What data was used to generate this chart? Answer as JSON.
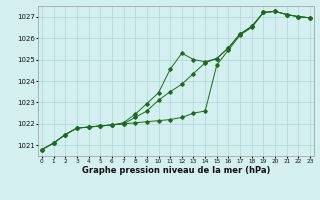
{
  "title": "Graphe pression niveau de la mer (hPa)",
  "bg_color": "#d4efef",
  "grid_color": "#aed4d4",
  "line_color": "#1a6b1a",
  "x_ticks": [
    0,
    1,
    2,
    3,
    4,
    5,
    6,
    7,
    8,
    9,
    10,
    11,
    12,
    13,
    14,
    15,
    16,
    17,
    18,
    19,
    20,
    21,
    22,
    23
  ],
  "y_ticks": [
    1021,
    1022,
    1023,
    1024,
    1025,
    1026,
    1027
  ],
  "ylim": [
    1020.5,
    1027.5
  ],
  "xlim": [
    -0.3,
    23.3
  ],
  "series1": [
    1020.8,
    1021.1,
    1021.5,
    1021.8,
    1021.85,
    1021.9,
    1021.95,
    1022.0,
    1022.05,
    1022.1,
    1022.15,
    1022.2,
    1022.3,
    1022.5,
    1022.6,
    1024.75,
    1025.45,
    1026.15,
    1026.5,
    1027.2,
    1027.25,
    1027.1,
    1027.0,
    1026.95
  ],
  "series2": [
    1020.8,
    1021.1,
    1021.5,
    1021.8,
    1021.85,
    1021.9,
    1021.95,
    1022.0,
    1022.3,
    1022.6,
    1023.1,
    1023.5,
    1023.85,
    1024.35,
    1024.85,
    1025.05,
    1025.55,
    1026.2,
    1026.55,
    1027.2,
    1027.25,
    1027.1,
    1027.0,
    1026.95
  ],
  "series3": [
    1020.8,
    1021.1,
    1021.5,
    1021.8,
    1021.85,
    1021.9,
    1021.95,
    1022.05,
    1022.45,
    1022.95,
    1023.45,
    1024.55,
    1025.3,
    1025.0,
    1024.9,
    1025.05,
    1025.55,
    1026.2,
    1026.55,
    1027.2,
    1027.25,
    1027.1,
    1027.0,
    1026.95
  ]
}
